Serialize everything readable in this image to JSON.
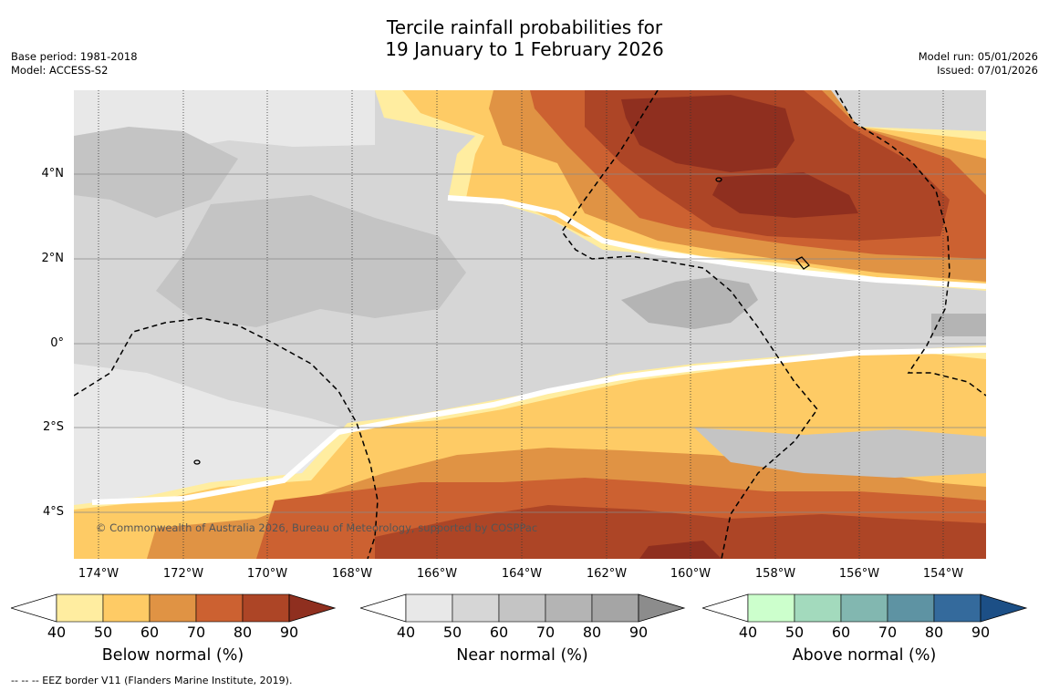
{
  "title": {
    "line1": "Tercile rainfall probabilities for",
    "line2": "19 January to 1 February 2026"
  },
  "meta_left": {
    "base_period": "Base period: 1981-2018",
    "model": "Model: ACCESS-S2"
  },
  "meta_right": {
    "model_run": "Model run: 05/01/2026",
    "issued": "Issued: 07/01/2026"
  },
  "map": {
    "copyright": "© Commonwealth of Australia 2026, Bureau of Meteorology, supported by COSPPac",
    "lat_labels": [
      "4°N",
      "2°N",
      "0°",
      "2°S",
      "4°S"
    ],
    "lon_labels": [
      "174°W",
      "172°W",
      "170°W",
      "168°W",
      "166°W",
      "164°W",
      "162°W",
      "160°W",
      "158°W",
      "156°W",
      "154°W"
    ]
  },
  "colorbars": {
    "below": {
      "title": "Below normal (%)",
      "ticks": [
        "40",
        "50",
        "60",
        "70",
        "80",
        "90"
      ],
      "colors": [
        "#ffffff",
        "#ffeda0",
        "#fecb65",
        "#e09344",
        "#cc6131",
        "#ad4526",
        "#8f2f1f"
      ]
    },
    "near": {
      "title": "Near normal (%)",
      "ticks": [
        "40",
        "50",
        "60",
        "70",
        "80",
        "90"
      ],
      "colors": [
        "#ffffff",
        "#e8e8e8",
        "#d6d6d6",
        "#c4c4c4",
        "#b4b4b4",
        "#a5a5a5",
        "#8c8c8c"
      ]
    },
    "above": {
      "title": "Above normal (%)",
      "ticks": [
        "40",
        "50",
        "60",
        "70",
        "80",
        "90"
      ],
      "colors": [
        "#ffffff",
        "#ccffcc",
        "#a3dabd",
        "#82b7b0",
        "#5e93a3",
        "#346a9c",
        "#1c4f86"
      ]
    }
  },
  "legend_footer": "--  --  -- EEZ border V11 (Flanders Marine Institute, 2019)."
}
